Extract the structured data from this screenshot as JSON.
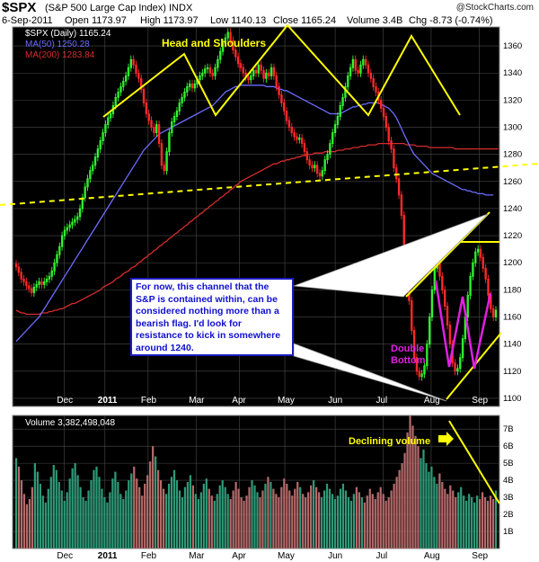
{
  "header": {
    "symbol": "$SPX",
    "name": "(S&P 500 Large Cap Index) INDX",
    "watermark": "@StockCharts.com",
    "date": "6-Sep-2011",
    "open": "Open 1173.97",
    "high": "High 1173.97",
    "low": "Low 1140.13",
    "close": "Close 1165.24",
    "volume": "Volume 3.4B",
    "change": "Chg -8.73 (-0.74%)"
  },
  "legend": {
    "price": "$SPX (Daily) 1165.24",
    "ma50": "MA(50) 1250.28",
    "ma200": "MA(200) 1283.84",
    "volume": "Volume 3,382,498,048"
  },
  "colors": {
    "background": "#000000",
    "grid": "#4a4a4a",
    "up": "#33ff33",
    "down": "#ff2a2a",
    "ma50": "#6c6cff",
    "ma200": "#d62c2c",
    "annotation": "#ffff00",
    "double_bottom": "#e020e0",
    "callout_text": "#1010d0",
    "vol_up": "#2f9a78",
    "vol_down": "#b56a6a"
  },
  "annotations": {
    "head_and_shoulders": "Head and Shoulders",
    "double_bottom_1": "Double",
    "double_bottom_2": "Bottom",
    "declining_volume": "Declining volume",
    "callout": "For now, this channel that the S&P is contained within, can be considered nothing more than a bearish flag. I'd look for resistance to kick in somewhere around 1240."
  },
  "chart_data": [
    {
      "type": "candlestick",
      "title": "$SPX (Daily)",
      "x_ticks": [
        "Dec",
        "2011",
        "Feb",
        "Mar",
        "Apr",
        "May",
        "Jun",
        "Jul",
        "Aug",
        "Sep"
      ],
      "y_ticks": [
        1100,
        1120,
        1140,
        1160,
        1180,
        1200,
        1220,
        1240,
        1260,
        1280,
        1300,
        1320,
        1340,
        1360
      ],
      "ylim": [
        1094,
        1374
      ],
      "closes": [
        1197,
        1193,
        1188,
        1186,
        1183,
        1181,
        1178,
        1182,
        1184,
        1186,
        1184,
        1186,
        1188,
        1190,
        1194,
        1200,
        1206,
        1212,
        1220,
        1224,
        1226,
        1228,
        1230,
        1232,
        1234,
        1240,
        1248,
        1256,
        1262,
        1268,
        1272,
        1278,
        1284,
        1290,
        1296,
        1302,
        1307,
        1310,
        1316,
        1322,
        1326,
        1330,
        1334,
        1338,
        1344,
        1350,
        1346,
        1340,
        1336,
        1328,
        1318,
        1310,
        1305,
        1300,
        1296,
        1302,
        1288,
        1272,
        1268,
        1282,
        1296,
        1304,
        1308,
        1312,
        1318,
        1322,
        1326,
        1330,
        1332,
        1329,
        1332,
        1335,
        1338,
        1340,
        1343,
        1344,
        1340,
        1338,
        1344,
        1350,
        1356,
        1362,
        1366,
        1370,
        1364,
        1357,
        1352,
        1347,
        1344,
        1340,
        1337,
        1335,
        1338,
        1342,
        1340,
        1346,
        1342,
        1336,
        1340,
        1338,
        1344,
        1338,
        1330,
        1324,
        1318,
        1312,
        1305,
        1300,
        1296,
        1293,
        1291,
        1292,
        1288,
        1282,
        1276,
        1272,
        1270,
        1272,
        1266,
        1264,
        1268,
        1276,
        1280,
        1288,
        1296,
        1302,
        1308,
        1316,
        1322,
        1330,
        1338,
        1344,
        1350,
        1342,
        1340,
        1346,
        1350,
        1346,
        1340,
        1336,
        1330,
        1326,
        1320,
        1314,
        1308,
        1300,
        1290,
        1284,
        1270,
        1262,
        1250,
        1235,
        1210,
        1190,
        1172,
        1150,
        1130,
        1120,
        1116,
        1118,
        1124,
        1140,
        1160,
        1180,
        1196,
        1200,
        1190,
        1180,
        1168,
        1154,
        1140,
        1126,
        1120,
        1122,
        1130,
        1144,
        1160,
        1176,
        1190,
        1200,
        1208,
        1210,
        1204,
        1196,
        1188,
        1176,
        1166,
        1160,
        1165
      ],
      "ma50": [
        1142,
        1144,
        1146,
        1148,
        1150,
        1152,
        1154,
        1156,
        1158,
        1160,
        1163,
        1166,
        1169,
        1172,
        1175,
        1178,
        1181,
        1184,
        1187,
        1190,
        1193,
        1196,
        1199,
        1202,
        1205,
        1208,
        1211,
        1214,
        1217,
        1220,
        1223,
        1226,
        1229,
        1232,
        1235,
        1238,
        1241,
        1244,
        1247,
        1250,
        1253,
        1256,
        1259,
        1262,
        1265,
        1268,
        1271,
        1274,
        1277,
        1280,
        1283,
        1285,
        1287,
        1289,
        1291,
        1293,
        1295,
        1296,
        1297,
        1298,
        1299,
        1300,
        1301,
        1302,
        1303,
        1304,
        1305,
        1306,
        1307,
        1308,
        1309,
        1310,
        1311,
        1312,
        1313,
        1314,
        1315,
        1316,
        1318,
        1320,
        1322,
        1324,
        1326,
        1327,
        1328,
        1329,
        1330,
        1330,
        1331,
        1331,
        1331,
        1331,
        1331,
        1331,
        1331,
        1331,
        1331,
        1331,
        1330,
        1330,
        1330,
        1330,
        1329,
        1328,
        1328,
        1327,
        1327,
        1326,
        1325,
        1324,
        1323,
        1322,
        1321,
        1320,
        1319,
        1318,
        1317,
        1316,
        1315,
        1314,
        1313,
        1312,
        1311,
        1310,
        1310,
        1310,
        1310,
        1310,
        1311,
        1312,
        1313,
        1314,
        1315,
        1315,
        1316,
        1316,
        1317,
        1317,
        1318,
        1318,
        1318,
        1318,
        1318,
        1317,
        1316,
        1315,
        1314,
        1312,
        1310,
        1307,
        1303,
        1299,
        1295,
        1291,
        1287,
        1283,
        1280,
        1278,
        1276,
        1274,
        1272,
        1270,
        1268,
        1266,
        1265,
        1264,
        1263,
        1262,
        1261,
        1260,
        1259,
        1258,
        1257,
        1256,
        1255,
        1254,
        1254,
        1253,
        1253,
        1252,
        1252,
        1251,
        1251,
        1251,
        1250,
        1250,
        1250,
        1250
      ],
      "ma200": [
        1165,
        1164,
        1163,
        1163,
        1162,
        1162,
        1162,
        1162,
        1162,
        1162,
        1163,
        1163,
        1163,
        1164,
        1164,
        1165,
        1165,
        1166,
        1166,
        1167,
        1168,
        1169,
        1170,
        1170,
        1171,
        1172,
        1173,
        1174,
        1175,
        1176,
        1177,
        1178,
        1179,
        1180,
        1182,
        1183,
        1184,
        1185,
        1186,
        1188,
        1189,
        1190,
        1192,
        1193,
        1194,
        1196,
        1197,
        1198,
        1200,
        1201,
        1203,
        1204,
        1206,
        1207,
        1209,
        1210,
        1212,
        1213,
        1215,
        1216,
        1218,
        1219,
        1221,
        1222,
        1224,
        1225,
        1227,
        1228,
        1230,
        1231,
        1233,
        1234,
        1236,
        1237,
        1239,
        1240,
        1242,
        1243,
        1245,
        1246,
        1248,
        1249,
        1251,
        1252,
        1254,
        1255,
        1257,
        1258,
        1260,
        1261,
        1262,
        1263,
        1264,
        1265,
        1266,
        1267,
        1268,
        1269,
        1270,
        1271,
        1272,
        1273,
        1273,
        1274,
        1275,
        1275,
        1276,
        1276,
        1277,
        1277,
        1278,
        1278,
        1279,
        1279,
        1280,
        1280,
        1280,
        1281,
        1281,
        1281,
        1281,
        1282,
        1282,
        1282,
        1282,
        1282,
        1283,
        1283,
        1283,
        1284,
        1284,
        1284,
        1285,
        1285,
        1285,
        1286,
        1286,
        1286,
        1287,
        1287,
        1287,
        1287,
        1288,
        1288,
        1288,
        1288,
        1288,
        1288,
        1288,
        1288,
        1288,
        1288,
        1288,
        1287,
        1287,
        1287,
        1287,
        1286,
        1286,
        1286,
        1286,
        1286,
        1285,
        1285,
        1285,
        1285,
        1285,
        1285,
        1285,
        1285,
        1285,
        1285,
        1284,
        1284,
        1284,
        1284,
        1284,
        1284,
        1284,
        1284,
        1284,
        1284,
        1284,
        1284,
        1284,
        1284,
        1284,
        1284,
        1284,
        1284
      ]
    },
    {
      "type": "bar",
      "title": "Volume",
      "y_ticks": [
        "1B",
        "2B",
        "3B",
        "4B",
        "5B",
        "6B",
        "7B"
      ],
      "ylim": [
        0,
        7.8
      ],
      "values_billions": [
        5.3,
        4.8,
        4.0,
        3.2,
        2.6,
        2.9,
        3.6,
        5.0,
        4.5,
        3.8,
        3.1,
        2.7,
        3.5,
        4.2,
        4.9,
        4.6,
        3.9,
        3.4,
        2.8,
        3.3,
        4.1,
        4.7,
        5.0,
        4.3,
        3.6,
        3.0,
        2.8,
        3.4,
        4.0,
        4.6,
        4.8,
        4.2,
        3.5,
        3.0,
        2.7,
        3.3,
        4.1,
        4.5,
        3.9,
        3.2,
        2.9,
        3.4,
        4.0,
        4.4,
        4.8,
        4.1,
        3.6,
        3.1,
        3.8,
        4.3,
        5.1,
        6.0,
        5.4,
        4.6,
        4.0,
        3.5,
        3.2,
        3.8,
        4.2,
        4.6,
        4.0,
        3.4,
        3.0,
        3.6,
        3.9,
        4.3,
        3.7,
        3.2,
        2.9,
        3.3,
        3.8,
        4.1,
        3.5,
        3.1,
        2.8,
        3.2,
        3.7,
        4.0,
        3.6,
        3.2,
        2.9,
        3.4,
        3.9,
        3.5,
        3.0,
        2.8,
        3.1,
        3.6,
        4.0,
        3.7,
        3.3,
        3.0,
        3.4,
        3.8,
        4.2,
        3.9,
        3.5,
        3.2,
        3.0,
        3.6,
        4.1,
        3.8,
        3.4,
        3.1,
        3.5,
        3.9,
        3.6,
        3.2,
        3.0,
        3.3,
        3.7,
        4.0,
        3.6,
        3.3,
        3.0,
        3.4,
        3.8,
        3.5,
        3.2,
        2.9,
        3.1,
        3.5,
        3.8,
        3.4,
        3.0,
        2.8,
        3.2,
        3.6,
        3.3,
        3.0,
        2.7,
        3.1,
        3.5,
        3.2,
        2.9,
        3.3,
        3.6,
        3.2,
        2.8,
        3.0,
        3.4,
        3.8,
        4.2,
        4.6,
        5.0,
        5.6,
        6.8,
        7.8,
        7.2,
        6.6,
        6.0,
        5.3,
        5.8,
        5.0,
        4.5,
        4.8,
        4.2,
        3.8,
        4.4,
        3.9,
        3.5,
        3.2,
        3.7,
        3.4,
        3.0,
        3.3,
        3.6,
        3.1,
        2.8,
        3.2,
        3.0,
        2.7,
        3.1,
        2.9,
        3.3,
        3.0,
        2.8,
        3.1,
        2.9,
        3.4
      ],
      "x_ticks": [
        "Dec",
        "2011",
        "Feb",
        "Mar",
        "Apr",
        "May",
        "Jun",
        "Jul",
        "Aug",
        "Sep"
      ]
    }
  ]
}
